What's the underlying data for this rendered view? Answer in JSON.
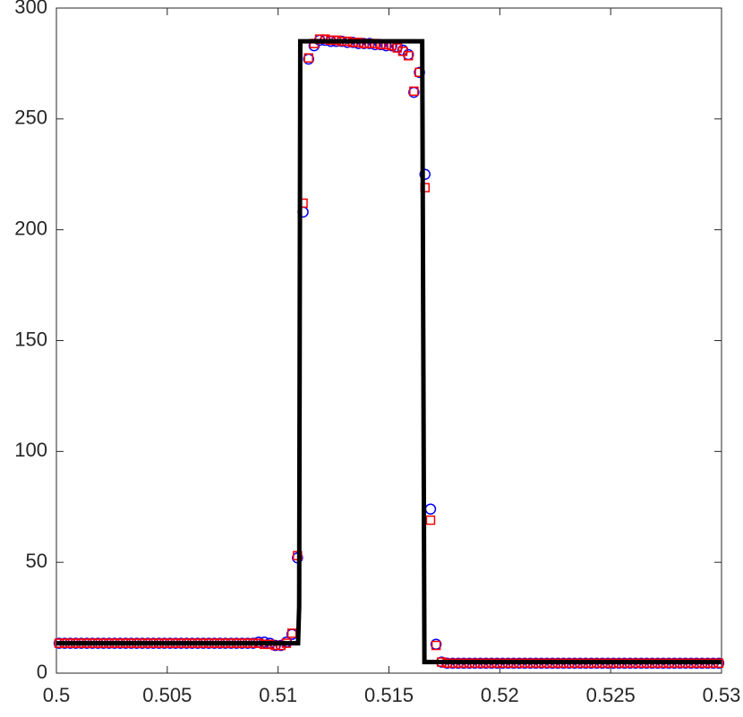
{
  "chart_data": {
    "type": "line",
    "xlim": [
      0.5,
      0.53
    ],
    "xticks": [
      0.5,
      0.505,
      0.51,
      0.515,
      0.52,
      0.525,
      0.53
    ],
    "ylim": [
      0,
      300
    ],
    "yticks": [
      0,
      50,
      100,
      150,
      200,
      250,
      300
    ],
    "grid": false,
    "x": [
      0.500125,
      0.500375,
      0.500625,
      0.500875,
      0.501125,
      0.501375,
      0.501625,
      0.501875,
      0.502125,
      0.502375,
      0.502625,
      0.502875,
      0.503125,
      0.503375,
      0.503625,
      0.503875,
      0.504125,
      0.504375,
      0.504625,
      0.504875,
      0.505125,
      0.505375,
      0.505625,
      0.505875,
      0.506125,
      0.506375,
      0.506625,
      0.506875,
      0.507125,
      0.507375,
      0.507625,
      0.507875,
      0.508125,
      0.508375,
      0.508625,
      0.508875,
      0.509125,
      0.509375,
      0.509625,
      0.509875,
      0.510125,
      0.510375,
      0.510625,
      0.510875,
      0.511125,
      0.511375,
      0.511625,
      0.511875,
      0.512125,
      0.512375,
      0.512625,
      0.512875,
      0.513125,
      0.513375,
      0.513625,
      0.513875,
      0.514125,
      0.514375,
      0.514625,
      0.514875,
      0.515125,
      0.515375,
      0.515625,
      0.515875,
      0.516125,
      0.516375,
      0.516625,
      0.516875,
      0.517125,
      0.517375,
      0.517625,
      0.517875,
      0.518125,
      0.518375,
      0.518625,
      0.518875,
      0.519125,
      0.519375,
      0.519625,
      0.519875,
      0.520125,
      0.520375,
      0.520625,
      0.520875,
      0.521125,
      0.521375,
      0.521625,
      0.521875,
      0.522125,
      0.522375,
      0.522625,
      0.522875,
      0.523125,
      0.523375,
      0.523625,
      0.523875,
      0.524125,
      0.524375,
      0.524625,
      0.524875,
      0.525125,
      0.525375,
      0.525625,
      0.525875,
      0.526125,
      0.526375,
      0.526625,
      0.526875,
      0.527125,
      0.527375,
      0.527625,
      0.527875,
      0.528125,
      0.528375,
      0.528625,
      0.528875,
      0.529125,
      0.529375,
      0.529625,
      0.529875
    ],
    "series": [
      {
        "type": "scatter",
        "marker": "circle",
        "color": "#0000ff",
        "values": [
          13.5,
          13.5,
          13.5,
          13.5,
          13.5,
          13.5,
          13.5,
          13.5,
          13.5,
          13.5,
          13.5,
          13.5,
          13.5,
          13.5,
          13.5,
          13.5,
          13.5,
          13.5,
          13.5,
          13.5,
          13.5,
          13.5,
          13.5,
          13.5,
          13.5,
          13.5,
          13.5,
          13.5,
          13.5,
          13.5,
          13.5,
          13.5,
          13.5,
          13.5,
          13.5,
          13.5,
          14,
          14,
          13.5,
          12.5,
          12.5,
          14,
          17.5,
          52,
          208,
          277,
          283,
          285.5,
          285.5,
          285,
          285,
          285,
          284.5,
          284.5,
          284,
          284,
          284,
          283.5,
          283.5,
          283,
          283,
          282.5,
          281,
          279,
          262,
          271,
          225,
          74,
          13,
          5,
          4.5,
          4.5,
          4.5,
          4.5,
          4.5,
          4.5,
          4.5,
          4.5,
          4.5,
          4.5,
          4.5,
          4.5,
          4.5,
          4.5,
          4.5,
          4.5,
          4.5,
          4.5,
          4.5,
          4.5,
          4.5,
          4.5,
          4.5,
          4.5,
          4.5,
          4.5,
          4.5,
          4.5,
          4.5,
          4.5,
          4.5,
          4.5,
          4.5,
          4.5,
          4.5,
          4.5,
          4.5,
          4.5,
          4.5,
          4.5,
          4.5,
          4.5,
          4.5,
          4.5,
          4.5,
          4.5,
          4.5,
          4.5,
          4.5,
          4.5
        ]
      },
      {
        "type": "scatter",
        "marker": "square",
        "color": "#ff0000",
        "values": [
          13.5,
          13.5,
          13.5,
          13.5,
          13.5,
          13.5,
          13.5,
          13.5,
          13.5,
          13.5,
          13.5,
          13.5,
          13.5,
          13.5,
          13.5,
          13.5,
          13.5,
          13.5,
          13.5,
          13.5,
          13.5,
          13.5,
          13.5,
          13.5,
          13.5,
          13.5,
          13.5,
          13.5,
          13.5,
          13.5,
          13.5,
          13.5,
          13.5,
          13.5,
          13.5,
          13.5,
          13.5,
          13,
          13,
          12.5,
          12.5,
          13.5,
          18,
          53,
          212,
          277.5,
          284,
          286,
          286,
          285.5,
          285.5,
          285,
          285,
          284.5,
          284.5,
          284,
          284,
          284,
          283.5,
          283.5,
          283,
          282,
          280.5,
          278.5,
          262.5,
          271,
          219,
          69,
          12.5,
          5,
          4.5,
          4.5,
          4.5,
          4.5,
          4.5,
          4.5,
          4.5,
          4.5,
          4.5,
          4.5,
          4.5,
          4.5,
          4.5,
          4.5,
          4.5,
          4.5,
          4.5,
          4.5,
          4.5,
          4.5,
          4.5,
          4.5,
          4.5,
          4.5,
          4.5,
          4.5,
          4.5,
          4.5,
          4.5,
          4.5,
          4.5,
          4.5,
          4.5,
          4.5,
          4.5,
          4.5,
          4.5,
          4.5,
          4.5,
          4.5,
          4.5,
          4.5,
          4.5,
          4.5,
          4.5,
          4.5,
          4.5,
          4.5,
          4.5,
          4.5
        ]
      },
      {
        "type": "line",
        "color": "#000000",
        "x": [
          0.5,
          0.5109,
          0.51095,
          0.511,
          0.5165,
          0.5166,
          0.53
        ],
        "values": [
          13.5,
          13.5,
          30,
          285,
          285,
          5,
          5
        ]
      }
    ]
  }
}
